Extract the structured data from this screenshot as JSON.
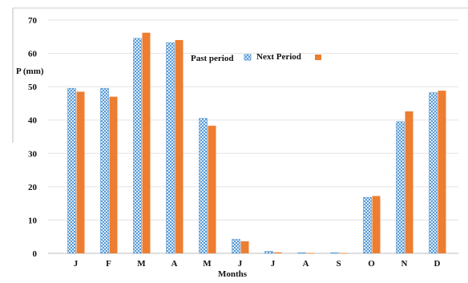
{
  "chart_data": {
    "type": "bar",
    "categories": [
      "J",
      "F",
      "M",
      "A",
      "M",
      "J",
      "J",
      "A",
      "S",
      "O",
      "N",
      "D"
    ],
    "series": [
      {
        "name": "Past period",
        "values": [
          49.5,
          49.5,
          64.5,
          63.2,
          40.5,
          4.2,
          0.6,
          0.2,
          0.2,
          16.8,
          39.5,
          48.2
        ],
        "color": "#b7d6f0",
        "pattern": "checker"
      },
      {
        "name": "Next Period",
        "values": [
          48.5,
          47.0,
          66.2,
          64.0,
          38.3,
          3.6,
          0.3,
          0.1,
          0.1,
          17.2,
          42.6,
          48.8
        ],
        "color": "#ed7d31"
      }
    ],
    "xlabel": "Months",
    "ylabel": "P (mm)",
    "ylim": [
      0,
      70
    ],
    "yticks": [
      0,
      10,
      20,
      30,
      40,
      50,
      60,
      70
    ],
    "grid": true,
    "legend_position": "top-center"
  }
}
